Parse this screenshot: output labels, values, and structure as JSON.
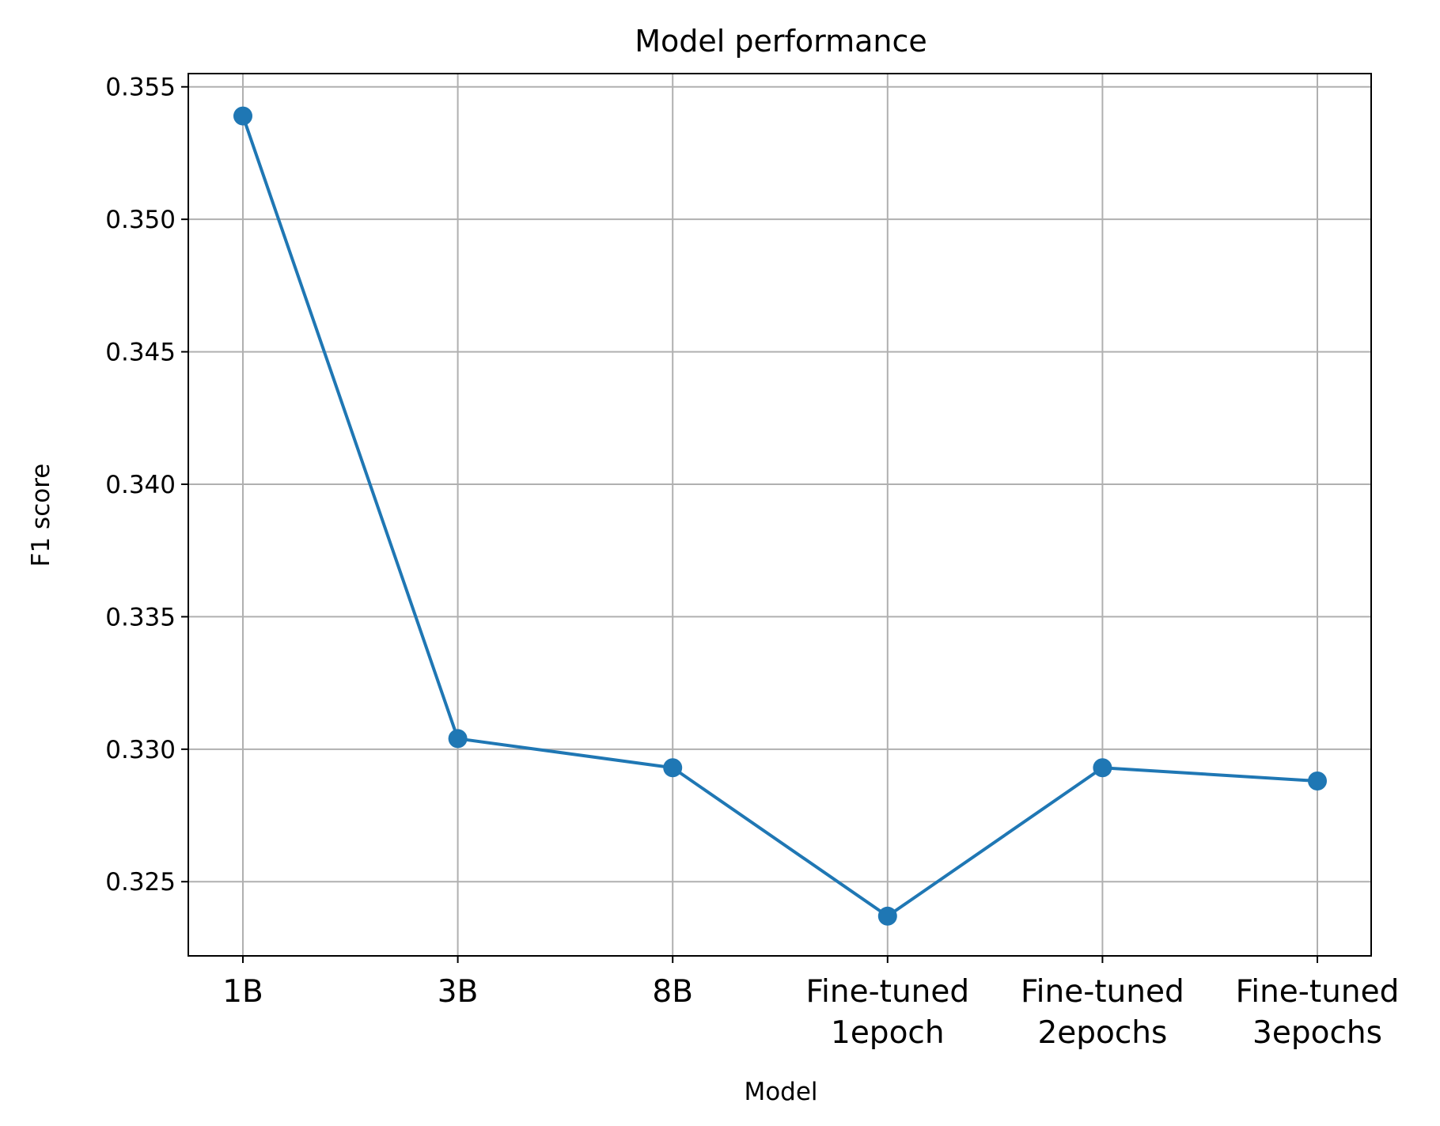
{
  "chart_data": {
    "type": "line",
    "title": "Model performance",
    "xlabel": "Model",
    "ylabel": "F1 score",
    "categories": [
      [
        "1B"
      ],
      [
        "3B"
      ],
      [
        "8B"
      ],
      [
        "Fine-tuned",
        "1epoch"
      ],
      [
        "Fine-tuned",
        "2epochs"
      ],
      [
        "Fine-tuned",
        "3epochs"
      ]
    ],
    "series": [
      {
        "values": [
          0.3539,
          0.3304,
          0.3293,
          0.3237,
          0.3293,
          0.3288
        ],
        "color": "#1f77b4"
      }
    ],
    "ylim": [
      0.3222,
      0.3555
    ],
    "yticks": [
      0.325,
      0.33,
      0.335,
      0.34,
      0.345,
      0.35,
      0.355
    ],
    "ytick_labels": [
      "0.325",
      "0.330",
      "0.335",
      "0.340",
      "0.345",
      "0.350",
      "0.355"
    ],
    "grid": true,
    "legend": "none",
    "marker": "circle"
  }
}
